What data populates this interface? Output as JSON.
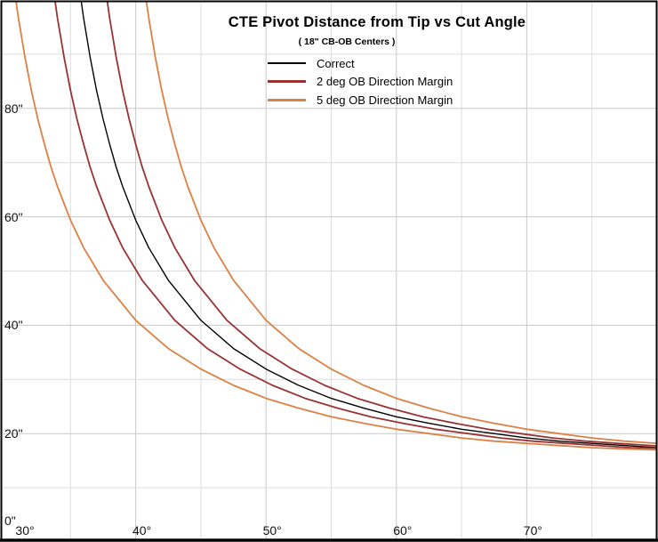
{
  "chart_data": {
    "type": "line",
    "title": "CTE Pivot Distance from Tip vs Cut Angle",
    "subtitle": "( 18\" CB-OB Centers )",
    "xlim": [
      30,
      80
    ],
    "ylim": [
      0,
      100
    ],
    "x_major_ticks": [
      {
        "value": 30,
        "label": "30°"
      },
      {
        "value": 40,
        "label": "40°"
      },
      {
        "value": 50,
        "label": "50°"
      },
      {
        "value": 60,
        "label": "60°"
      },
      {
        "value": 70,
        "label": "70°"
      }
    ],
    "y_major_ticks": [
      {
        "value": 0,
        "label": "0\""
      },
      {
        "value": 20,
        "label": "20\""
      },
      {
        "value": 40,
        "label": "40\""
      },
      {
        "value": 60,
        "label": "60\""
      },
      {
        "value": 80,
        "label": "80\""
      }
    ],
    "x_minor_step": 5,
    "y_minor_step": 10,
    "grid": "on",
    "legend_position": "inside-top-center",
    "legend": [
      {
        "label": "Correct",
        "color": "#000000",
        "thickness": 2.5
      },
      {
        "label": "2 deg OB Direction Margin",
        "color": "#993333",
        "thickness": 3
      },
      {
        "label": "5 deg OB Direction Margin",
        "color": "#DD8044",
        "thickness": 3
      }
    ],
    "colors": {
      "background": "#FFFFFF",
      "border": "#000000",
      "grid_major": "#C8C8C8",
      "grid_minor": "#DCDCDC",
      "correct": "#000000",
      "margin_2deg": "#993333",
      "margin_5deg": "#DD8044"
    },
    "series": [
      {
        "name": "Correct",
        "color": "#000000",
        "width": 1.4,
        "points": [
          [
            33,
            190.2
          ],
          [
            34,
            143.4
          ],
          [
            34.5,
            127.8
          ],
          [
            35,
            115.4
          ],
          [
            35.5,
            105.2
          ],
          [
            36,
            96.7
          ],
          [
            36.5,
            89.5
          ],
          [
            37,
            83.3
          ],
          [
            37.5,
            78.0
          ],
          [
            38,
            73.4
          ],
          [
            38.5,
            69.2
          ],
          [
            39,
            65.6
          ],
          [
            40,
            59.4
          ],
          [
            41,
            54.3
          ],
          [
            42.5,
            48.3
          ],
          [
            45,
            40.9
          ],
          [
            47.5,
            35.7
          ],
          [
            50,
            31.9
          ],
          [
            52.5,
            28.9
          ],
          [
            55,
            26.5
          ],
          [
            57.5,
            24.7
          ],
          [
            60,
            23.1
          ],
          [
            62.5,
            21.9
          ],
          [
            65,
            20.8
          ],
          [
            67.5,
            20.0
          ],
          [
            70,
            19.2
          ],
          [
            72.5,
            18.6
          ],
          [
            75,
            18.2
          ],
          [
            77.5,
            17.8
          ],
          [
            80,
            17.4
          ]
        ]
      },
      {
        "name": "2 deg OB Direction Margin (upper, +2 deg)",
        "color": "#993333",
        "width": 1.8,
        "points": [
          [
            35,
            190.2
          ],
          [
            36,
            143.4
          ],
          [
            36.5,
            127.8
          ],
          [
            37,
            115.4
          ],
          [
            37.5,
            105.2
          ],
          [
            38,
            96.7
          ],
          [
            38.5,
            89.5
          ],
          [
            39,
            83.3
          ],
          [
            39.5,
            78.0
          ],
          [
            40,
            73.4
          ],
          [
            40.5,
            69.2
          ],
          [
            41,
            65.6
          ],
          [
            42,
            59.4
          ],
          [
            43,
            54.3
          ],
          [
            44.5,
            48.3
          ],
          [
            47,
            40.9
          ],
          [
            49.5,
            35.7
          ],
          [
            52,
            31.9
          ],
          [
            54.5,
            28.9
          ],
          [
            57,
            26.5
          ],
          [
            59.5,
            24.7
          ],
          [
            62,
            23.1
          ],
          [
            64.5,
            21.9
          ],
          [
            67,
            20.8
          ],
          [
            69.5,
            20.0
          ],
          [
            72,
            19.2
          ],
          [
            74.5,
            18.6
          ],
          [
            77,
            18.2
          ],
          [
            79.5,
            17.8
          ],
          [
            80,
            17.7
          ]
        ]
      },
      {
        "name": "2 deg OB Direction Margin (lower, -2 deg)",
        "color": "#993333",
        "width": 1.8,
        "points": [
          [
            31,
            190.2
          ],
          [
            32,
            143.4
          ],
          [
            32.5,
            127.8
          ],
          [
            33,
            115.4
          ],
          [
            33.5,
            105.2
          ],
          [
            34,
            96.7
          ],
          [
            34.5,
            89.5
          ],
          [
            35,
            83.3
          ],
          [
            35.5,
            78.0
          ],
          [
            36,
            73.4
          ],
          [
            36.5,
            69.2
          ],
          [
            37,
            65.6
          ],
          [
            38,
            59.4
          ],
          [
            39,
            54.3
          ],
          [
            40.5,
            48.3
          ],
          [
            43,
            40.9
          ],
          [
            45.5,
            35.7
          ],
          [
            48,
            31.9
          ],
          [
            50.5,
            28.9
          ],
          [
            53,
            26.5
          ],
          [
            55.5,
            24.7
          ],
          [
            58,
            23.1
          ],
          [
            60.5,
            21.9
          ],
          [
            63,
            20.8
          ],
          [
            65.5,
            20.0
          ],
          [
            68,
            19.2
          ],
          [
            70.5,
            18.6
          ],
          [
            73,
            18.2
          ],
          [
            75.5,
            17.8
          ],
          [
            78,
            17.4
          ],
          [
            80,
            17.3
          ]
        ]
      },
      {
        "name": "5 deg OB Direction Margin (upper, +5 deg)",
        "color": "#DD8044",
        "width": 1.8,
        "points": [
          [
            38,
            190.2
          ],
          [
            39,
            143.4
          ],
          [
            39.5,
            127.8
          ],
          [
            40,
            115.4
          ],
          [
            40.5,
            105.2
          ],
          [
            41,
            96.7
          ],
          [
            41.5,
            89.5
          ],
          [
            42,
            83.3
          ],
          [
            42.5,
            78.0
          ],
          [
            43,
            73.4
          ],
          [
            43.5,
            69.2
          ],
          [
            44,
            65.6
          ],
          [
            45,
            59.4
          ],
          [
            46,
            54.3
          ],
          [
            47.5,
            48.3
          ],
          [
            50,
            40.9
          ],
          [
            52.5,
            35.7
          ],
          [
            55,
            31.9
          ],
          [
            57.5,
            28.9
          ],
          [
            60,
            26.5
          ],
          [
            62.5,
            24.7
          ],
          [
            65,
            23.1
          ],
          [
            67.5,
            21.9
          ],
          [
            70,
            20.8
          ],
          [
            72.5,
            20.0
          ],
          [
            75,
            19.2
          ],
          [
            77.5,
            18.6
          ],
          [
            80,
            18.2
          ]
        ]
      },
      {
        "name": "5 deg OB Direction Margin (lower, -5 deg)",
        "color": "#DD8044",
        "width": 1.8,
        "points": [
          [
            29,
            143.4
          ],
          [
            29.5,
            127.8
          ],
          [
            30,
            115.4
          ],
          [
            30.5,
            105.2
          ],
          [
            31,
            96.7
          ],
          [
            31.5,
            89.5
          ],
          [
            32,
            83.3
          ],
          [
            32.5,
            78.0
          ],
          [
            33,
            73.4
          ],
          [
            33.5,
            69.2
          ],
          [
            34,
            65.6
          ],
          [
            35,
            59.4
          ],
          [
            36,
            54.3
          ],
          [
            37.5,
            48.3
          ],
          [
            40,
            40.9
          ],
          [
            42.5,
            35.7
          ],
          [
            45,
            31.9
          ],
          [
            47.5,
            28.9
          ],
          [
            50,
            26.5
          ],
          [
            52.5,
            24.7
          ],
          [
            55,
            23.1
          ],
          [
            57.5,
            21.9
          ],
          [
            60,
            20.8
          ],
          [
            62.5,
            20.0
          ],
          [
            65,
            19.2
          ],
          [
            67.5,
            18.6
          ],
          [
            70,
            18.2
          ],
          [
            72.5,
            17.8
          ],
          [
            75,
            17.4
          ],
          [
            77.5,
            17.2
          ],
          [
            80,
            17.0
          ]
        ]
      }
    ]
  }
}
